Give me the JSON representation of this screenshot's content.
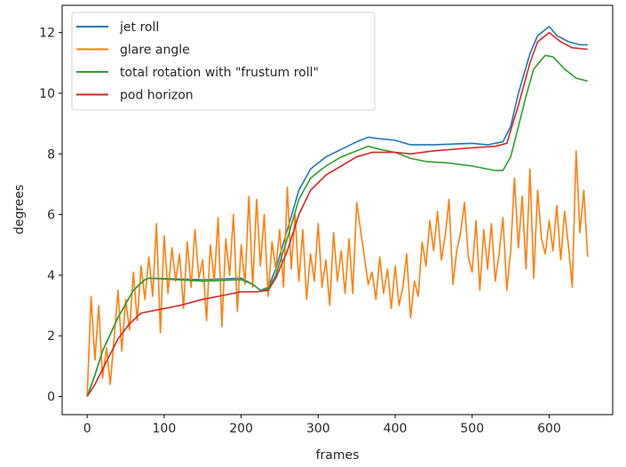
{
  "chart_data": {
    "type": "line",
    "title": "",
    "xlabel": "frames",
    "ylabel": "degrees",
    "xlim": [
      -32.5,
      682.5
    ],
    "ylim": [
      -0.6,
      12.9
    ],
    "xticks": [
      0,
      100,
      200,
      300,
      400,
      500,
      600
    ],
    "yticks": [
      0,
      2,
      4,
      6,
      8,
      10,
      12
    ],
    "grid": false,
    "legend_position": "top-left",
    "series": [
      {
        "name": "jet roll",
        "color": "#1f77b4",
        "points": [
          [
            0,
            0
          ],
          [
            10,
            0.7
          ],
          [
            20,
            1.5
          ],
          [
            40,
            2.6
          ],
          [
            60,
            3.5
          ],
          [
            75,
            3.85
          ],
          [
            80,
            3.9
          ],
          [
            150,
            3.85
          ],
          [
            200,
            3.9
          ],
          [
            215,
            3.7
          ],
          [
            225,
            3.5
          ],
          [
            235,
            3.6
          ],
          [
            245,
            4.2
          ],
          [
            260,
            5.5
          ],
          [
            275,
            6.8
          ],
          [
            290,
            7.5
          ],
          [
            310,
            7.9
          ],
          [
            330,
            8.15
          ],
          [
            350,
            8.4
          ],
          [
            365,
            8.55
          ],
          [
            380,
            8.5
          ],
          [
            400,
            8.45
          ],
          [
            420,
            8.3
          ],
          [
            450,
            8.3
          ],
          [
            500,
            8.35
          ],
          [
            520,
            8.3
          ],
          [
            540,
            8.4
          ],
          [
            550,
            8.9
          ],
          [
            560,
            10.0
          ],
          [
            575,
            11.3
          ],
          [
            585,
            11.9
          ],
          [
            600,
            12.2
          ],
          [
            610,
            11.9
          ],
          [
            625,
            11.7
          ],
          [
            640,
            11.6
          ],
          [
            650,
            11.6
          ]
        ]
      },
      {
        "name": "glare angle",
        "color": "#ff7f0e",
        "points": [
          [
            0,
            0
          ],
          [
            5,
            3.3
          ],
          [
            10,
            1.2
          ],
          [
            15,
            3.0
          ],
          [
            20,
            0.6
          ],
          [
            25,
            1.6
          ],
          [
            30,
            0.4
          ],
          [
            35,
            1.9
          ],
          [
            40,
            3.5
          ],
          [
            45,
            1.5
          ],
          [
            50,
            3.2
          ],
          [
            55,
            2.2
          ],
          [
            60,
            4.1
          ],
          [
            65,
            2.5
          ],
          [
            70,
            4.3
          ],
          [
            75,
            3.2
          ],
          [
            80,
            4.6
          ],
          [
            85,
            3.3
          ],
          [
            90,
            5.7
          ],
          [
            95,
            2.1
          ],
          [
            100,
            5.3
          ],
          [
            105,
            3.4
          ],
          [
            110,
            4.9
          ],
          [
            115,
            3.8
          ],
          [
            120,
            4.7
          ],
          [
            125,
            2.9
          ],
          [
            130,
            5.1
          ],
          [
            135,
            3.6
          ],
          [
            140,
            5.5
          ],
          [
            145,
            3.9
          ],
          [
            150,
            4.5
          ],
          [
            155,
            2.5
          ],
          [
            160,
            5.0
          ],
          [
            165,
            3.8
          ],
          [
            170,
            5.9
          ],
          [
            175,
            2.3
          ],
          [
            180,
            5.2
          ],
          [
            185,
            4.0
          ],
          [
            190,
            6.0
          ],
          [
            195,
            2.8
          ],
          [
            200,
            5.0
          ],
          [
            205,
            3.7
          ],
          [
            210,
            6.6
          ],
          [
            215,
            3.6
          ],
          [
            220,
            6.5
          ],
          [
            225,
            4.3
          ],
          [
            230,
            6.0
          ],
          [
            235,
            3.3
          ],
          [
            240,
            5.1
          ],
          [
            245,
            4.2
          ],
          [
            250,
            5.5
          ],
          [
            255,
            3.6
          ],
          [
            260,
            6.9
          ],
          [
            265,
            4.2
          ],
          [
            270,
            6.0
          ],
          [
            275,
            3.8
          ],
          [
            280,
            5.5
          ],
          [
            285,
            3.2
          ],
          [
            290,
            4.7
          ],
          [
            295,
            3.8
          ],
          [
            300,
            5.7
          ],
          [
            305,
            3.6
          ],
          [
            310,
            4.5
          ],
          [
            315,
            3.0
          ],
          [
            320,
            5.4
          ],
          [
            325,
            3.8
          ],
          [
            330,
            4.8
          ],
          [
            335,
            3.4
          ],
          [
            340,
            5.2
          ],
          [
            345,
            3.4
          ],
          [
            350,
            6.4
          ],
          [
            355,
            5.5
          ],
          [
            360,
            4.6
          ],
          [
            365,
            3.7
          ],
          [
            370,
            4.1
          ],
          [
            375,
            3.2
          ],
          [
            380,
            4.6
          ],
          [
            385,
            3.4
          ],
          [
            390,
            4.2
          ],
          [
            395,
            2.9
          ],
          [
            400,
            4.3
          ],
          [
            405,
            3.0
          ],
          [
            410,
            3.6
          ],
          [
            415,
            4.7
          ],
          [
            420,
            2.6
          ],
          [
            425,
            3.8
          ],
          [
            430,
            3.3
          ],
          [
            435,
            5.1
          ],
          [
            440,
            4.3
          ],
          [
            445,
            5.8
          ],
          [
            450,
            4.8
          ],
          [
            455,
            6.1
          ],
          [
            460,
            4.5
          ],
          [
            465,
            5.3
          ],
          [
            470,
            6.5
          ],
          [
            475,
            3.7
          ],
          [
            480,
            4.8
          ],
          [
            485,
            5.4
          ],
          [
            490,
            6.4
          ],
          [
            495,
            4.6
          ],
          [
            500,
            4.1
          ],
          [
            505,
            5.8
          ],
          [
            510,
            3.5
          ],
          [
            515,
            5.5
          ],
          [
            520,
            4.2
          ],
          [
            525,
            5.7
          ],
          [
            530,
            3.8
          ],
          [
            535,
            4.7
          ],
          [
            540,
            5.9
          ],
          [
            545,
            3.5
          ],
          [
            550,
            4.8
          ],
          [
            555,
            7.2
          ],
          [
            560,
            4.9
          ],
          [
            565,
            6.6
          ],
          [
            570,
            4.2
          ],
          [
            575,
            7.5
          ],
          [
            580,
            3.9
          ],
          [
            585,
            6.8
          ],
          [
            590,
            5.2
          ],
          [
            595,
            4.7
          ],
          [
            600,
            5.8
          ],
          [
            605,
            4.8
          ],
          [
            610,
            6.3
          ],
          [
            615,
            4.5
          ],
          [
            620,
            6.1
          ],
          [
            625,
            5.0
          ],
          [
            630,
            3.6
          ],
          [
            635,
            8.1
          ],
          [
            640,
            5.4
          ],
          [
            645,
            6.8
          ],
          [
            650,
            4.6
          ]
        ]
      },
      {
        "name": "total rotation with \"frustum roll\"",
        "color": "#2ca02c",
        "points": [
          [
            0,
            0
          ],
          [
            10,
            0.7
          ],
          [
            20,
            1.5
          ],
          [
            40,
            2.6
          ],
          [
            60,
            3.5
          ],
          [
            75,
            3.85
          ],
          [
            80,
            3.9
          ],
          [
            150,
            3.8
          ],
          [
            200,
            3.85
          ],
          [
            215,
            3.7
          ],
          [
            225,
            3.5
          ],
          [
            235,
            3.55
          ],
          [
            245,
            4.0
          ],
          [
            260,
            5.2
          ],
          [
            275,
            6.5
          ],
          [
            290,
            7.2
          ],
          [
            310,
            7.6
          ],
          [
            330,
            7.9
          ],
          [
            350,
            8.1
          ],
          [
            365,
            8.25
          ],
          [
            380,
            8.15
          ],
          [
            400,
            8.05
          ],
          [
            420,
            7.85
          ],
          [
            440,
            7.75
          ],
          [
            470,
            7.7
          ],
          [
            500,
            7.6
          ],
          [
            530,
            7.45
          ],
          [
            540,
            7.45
          ],
          [
            550,
            7.9
          ],
          [
            560,
            8.9
          ],
          [
            570,
            9.9
          ],
          [
            580,
            10.8
          ],
          [
            595,
            11.25
          ],
          [
            605,
            11.2
          ],
          [
            620,
            10.8
          ],
          [
            635,
            10.5
          ],
          [
            650,
            10.4
          ]
        ]
      },
      {
        "name": "pod horizon",
        "color": "#d62728",
        "points": [
          [
            0,
            0
          ],
          [
            10,
            0.4
          ],
          [
            20,
            0.9
          ],
          [
            30,
            1.4
          ],
          [
            40,
            1.9
          ],
          [
            55,
            2.4
          ],
          [
            70,
            2.75
          ],
          [
            90,
            2.85
          ],
          [
            120,
            3.0
          ],
          [
            150,
            3.2
          ],
          [
            180,
            3.35
          ],
          [
            200,
            3.45
          ],
          [
            220,
            3.45
          ],
          [
            235,
            3.5
          ],
          [
            245,
            3.9
          ],
          [
            260,
            4.8
          ],
          [
            275,
            6.0
          ],
          [
            290,
            6.8
          ],
          [
            310,
            7.3
          ],
          [
            330,
            7.6
          ],
          [
            350,
            7.9
          ],
          [
            370,
            8.05
          ],
          [
            400,
            8.05
          ],
          [
            420,
            8.0
          ],
          [
            450,
            8.1
          ],
          [
            500,
            8.2
          ],
          [
            530,
            8.25
          ],
          [
            545,
            8.35
          ],
          [
            560,
            9.6
          ],
          [
            575,
            11.0
          ],
          [
            585,
            11.7
          ],
          [
            600,
            12.0
          ],
          [
            615,
            11.7
          ],
          [
            630,
            11.5
          ],
          [
            650,
            11.45
          ]
        ]
      }
    ]
  }
}
